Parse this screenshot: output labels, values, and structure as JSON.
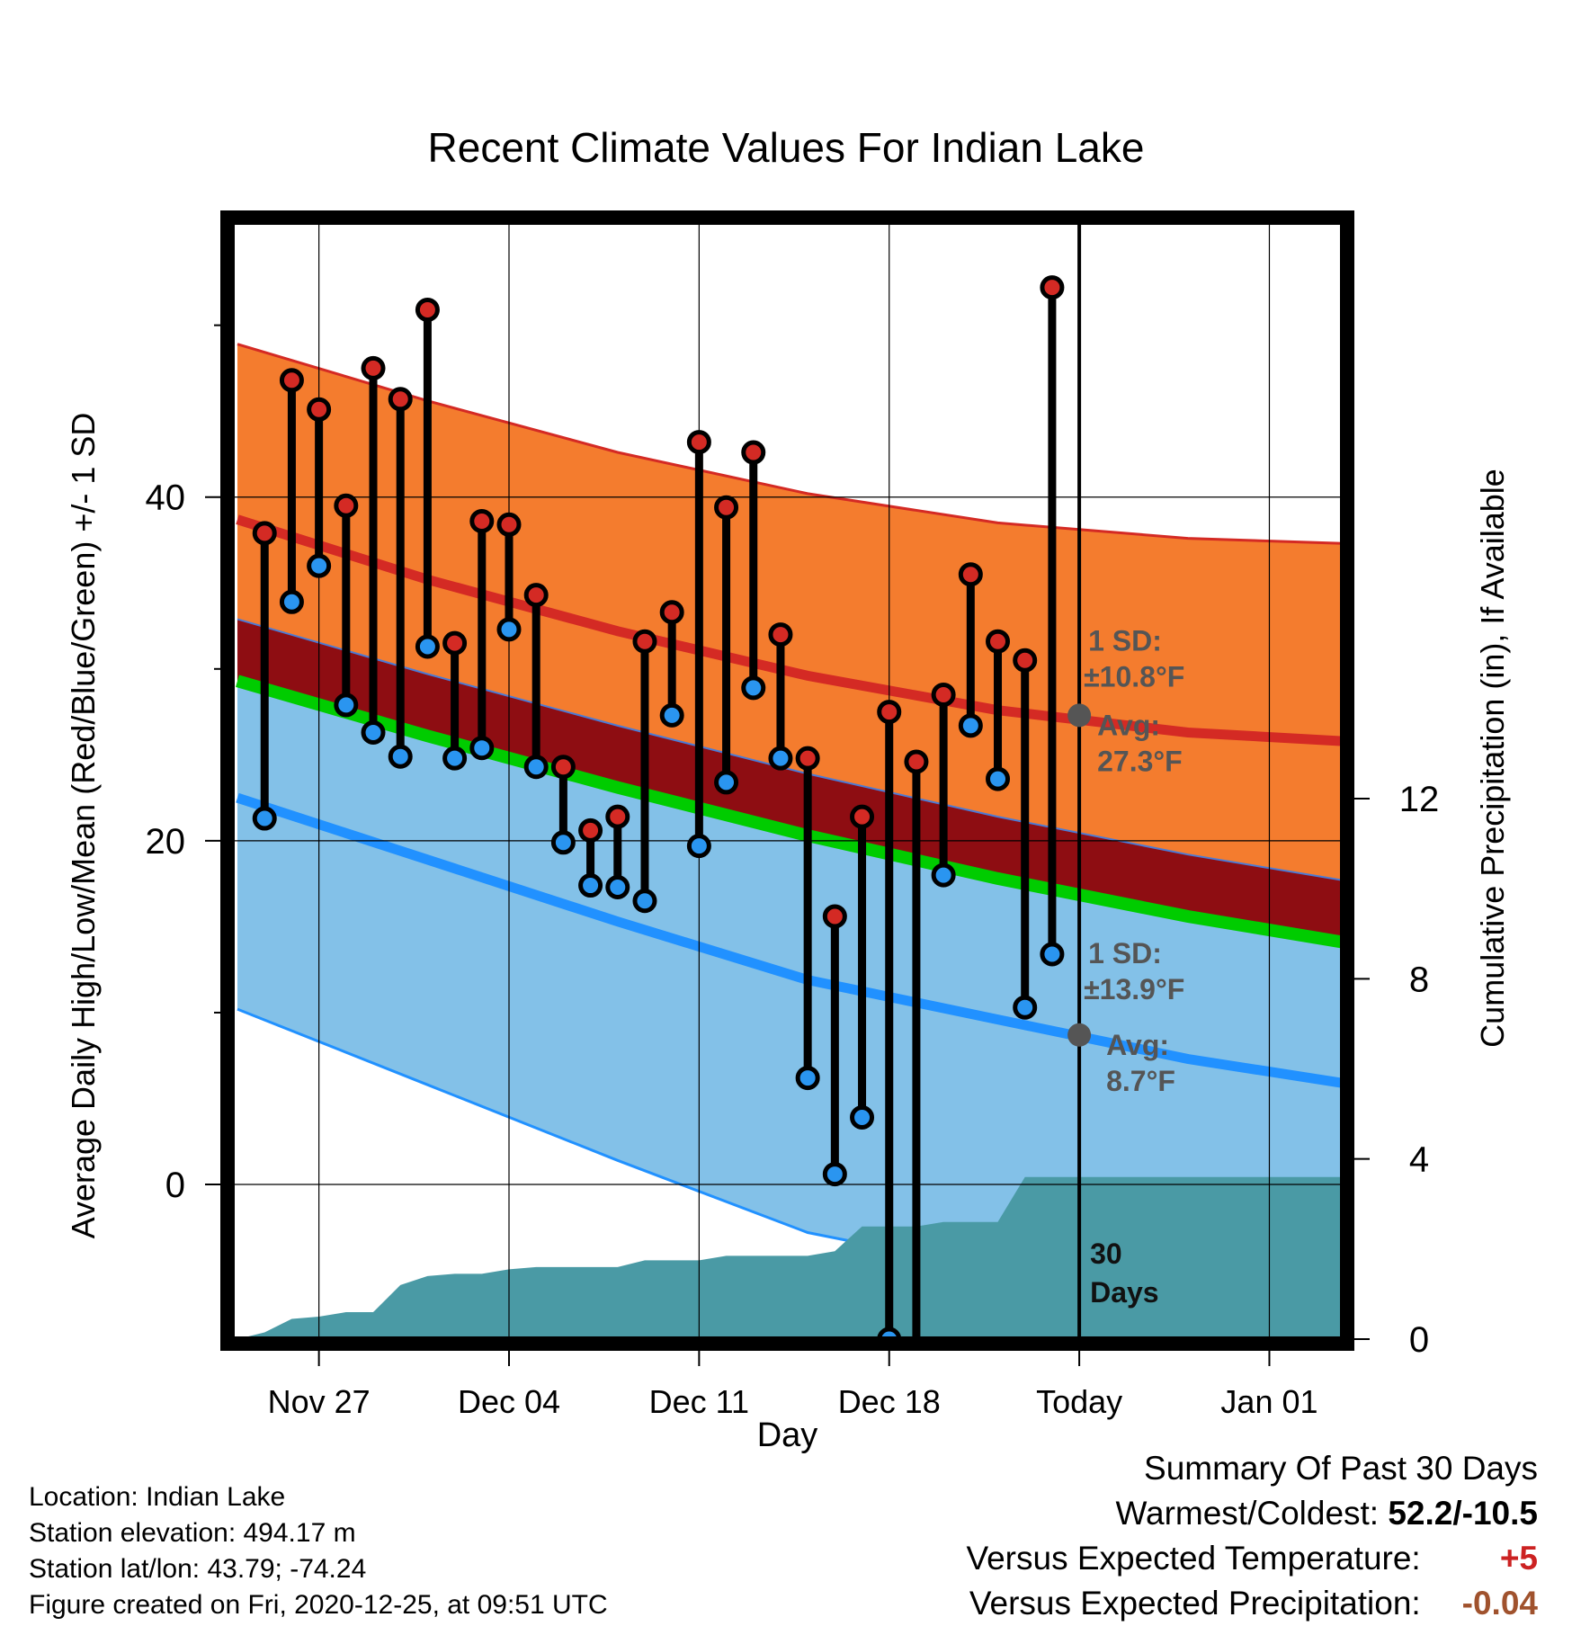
{
  "chart_data": {
    "type": "line",
    "title": "Recent Climate Values For Indian Lake",
    "xlabel": "Day",
    "ylabel_left": "Average Daily High/Low/Mean (Red/Blue/Green) +/- 1 SD",
    "ylabel_right": "Cumulative Precipitation (in), If Available",
    "xtick_labels": [
      "Nov 27",
      "Dec 04",
      "Dec 11",
      "Dec 18",
      "Today",
      "Jan 01"
    ],
    "xtick_days": [
      -28,
      -21,
      -14,
      -7,
      0,
      7
    ],
    "xlim_days": [
      -31.2,
      9.7
    ],
    "ylim_left": [
      -9,
      56
    ],
    "yticks_left": [
      0,
      20,
      40
    ],
    "ylim_right": [
      0,
      24.8
    ],
    "yticks_right": [
      0,
      4,
      8,
      12
    ],
    "grid": true,
    "today_marker_label": [
      "30",
      "Days"
    ],
    "normals": {
      "days": [
        -31,
        -24,
        -17,
        -10,
        -3,
        4,
        9.7
      ],
      "high_mean": [
        38.7,
        35.2,
        32.2,
        29.6,
        27.6,
        26.3,
        25.8
      ],
      "high_upper": [
        48.9,
        45.6,
        42.6,
        40.2,
        38.5,
        37.6,
        37.3
      ],
      "low_mean": [
        22.5,
        18.9,
        15.3,
        11.9,
        9.6,
        7.3,
        5.9
      ],
      "low_lower": [
        10.2,
        5.8,
        1.4,
        -2.8,
        -5.0,
        -7.2,
        -8.3
      ],
      "mean_line": [
        29.3,
        26.1,
        23.1,
        20.3,
        17.8,
        15.6,
        14.1
      ],
      "today_high_avg": 27.3,
      "today_low_avg": 8.7
    },
    "annotations": {
      "high_sd": [
        "1 SD:",
        "±10.8°F"
      ],
      "high_avg": [
        "Avg:",
        "27.3°F"
      ],
      "low_sd": [
        "1 SD:",
        "±13.9°F"
      ],
      "low_avg": [
        "Avg:",
        "8.7°F"
      ]
    },
    "series": [
      {
        "name": "High",
        "x": [
          -30,
          -29,
          -28,
          -27,
          -26,
          -25,
          -24,
          -23,
          -22,
          -21,
          -20,
          -19,
          -18,
          -17,
          -16,
          -15,
          -14,
          -13,
          -12,
          -11,
          -10,
          -9,
          -8,
          -7,
          -6,
          -5,
          -4,
          -3,
          -2,
          -1
        ],
        "values": [
          37.9,
          46.8,
          45.1,
          39.5,
          47.5,
          45.7,
          50.9,
          31.5,
          38.6,
          38.4,
          34.3,
          24.3,
          20.6,
          21.4,
          31.6,
          33.3,
          43.2,
          39.4,
          42.6,
          32.0,
          24.8,
          15.6,
          21.4,
          27.5,
          24.6,
          28.5,
          35.5,
          31.6,
          30.5,
          52.2
        ]
      },
      {
        "name": "Low",
        "x": [
          -30,
          -29,
          -28,
          -27,
          -26,
          -25,
          -24,
          -23,
          -22,
          -21,
          -20,
          -19,
          -18,
          -17,
          -16,
          -15,
          -14,
          -13,
          -12,
          -11,
          -10,
          -9,
          -8,
          -7,
          -6,
          -5,
          -4,
          -3,
          -2,
          -1
        ],
        "values": [
          21.3,
          33.9,
          36.0,
          27.9,
          26.3,
          24.9,
          31.3,
          24.8,
          25.4,
          32.3,
          24.3,
          19.9,
          17.4,
          17.3,
          16.5,
          27.3,
          19.7,
          23.4,
          28.9,
          24.8,
          6.2,
          0.6,
          3.9,
          -9.0,
          -10.5,
          18.0,
          26.7,
          23.6,
          10.3,
          13.4
        ]
      },
      {
        "name": "Precipitation",
        "x": [
          -31,
          -30,
          -29,
          -28,
          -27,
          -26,
          -25,
          -24,
          -23,
          -22,
          -21,
          -20,
          -19,
          -18,
          -17,
          -16,
          -15,
          -14,
          -13,
          -12,
          -11,
          -10,
          -9,
          -8,
          -7,
          -6,
          -5,
          -4,
          -3,
          -2,
          -1,
          0,
          9.7
        ],
        "values": [
          0,
          0.15,
          0.45,
          0.5,
          0.6,
          0.6,
          1.2,
          1.4,
          1.45,
          1.45,
          1.55,
          1.6,
          1.6,
          1.6,
          1.6,
          1.75,
          1.75,
          1.75,
          1.85,
          1.85,
          1.85,
          1.85,
          1.95,
          2.5,
          2.5,
          2.5,
          2.6,
          2.6,
          2.6,
          3.6,
          3.6,
          3.6,
          3.6
        ]
      }
    ],
    "colors": {
      "high_band": "#f47c2e",
      "high_line": "#d42a24",
      "mid_band": "#8e0d12",
      "mean_line": "#00cc00",
      "low_band": "#83c1e8",
      "low_line": "#2191ff",
      "precip": "#4a9aa5",
      "high_dot": "#d42a24",
      "low_dot": "#2a95f0",
      "annotation": "#555555"
    }
  },
  "footer": {
    "location": "Location: Indian Lake",
    "elevation": "Station elevation: 494.17 m",
    "latlon": "Station lat/lon: 43.79; -74.24",
    "created": "Figure created on Fri, 2020-12-25, at 09:51 UTC"
  },
  "summary": {
    "title": "Summary Of Past 30 Days",
    "warm_cold_label": "Warmest/Coldest:",
    "warm_cold_value": "52.2/-10.5",
    "temp_label": "Versus Expected Temperature:",
    "temp_value": "+5",
    "precip_label": "Versus Expected Precipitation:",
    "precip_value": "-0.04"
  }
}
